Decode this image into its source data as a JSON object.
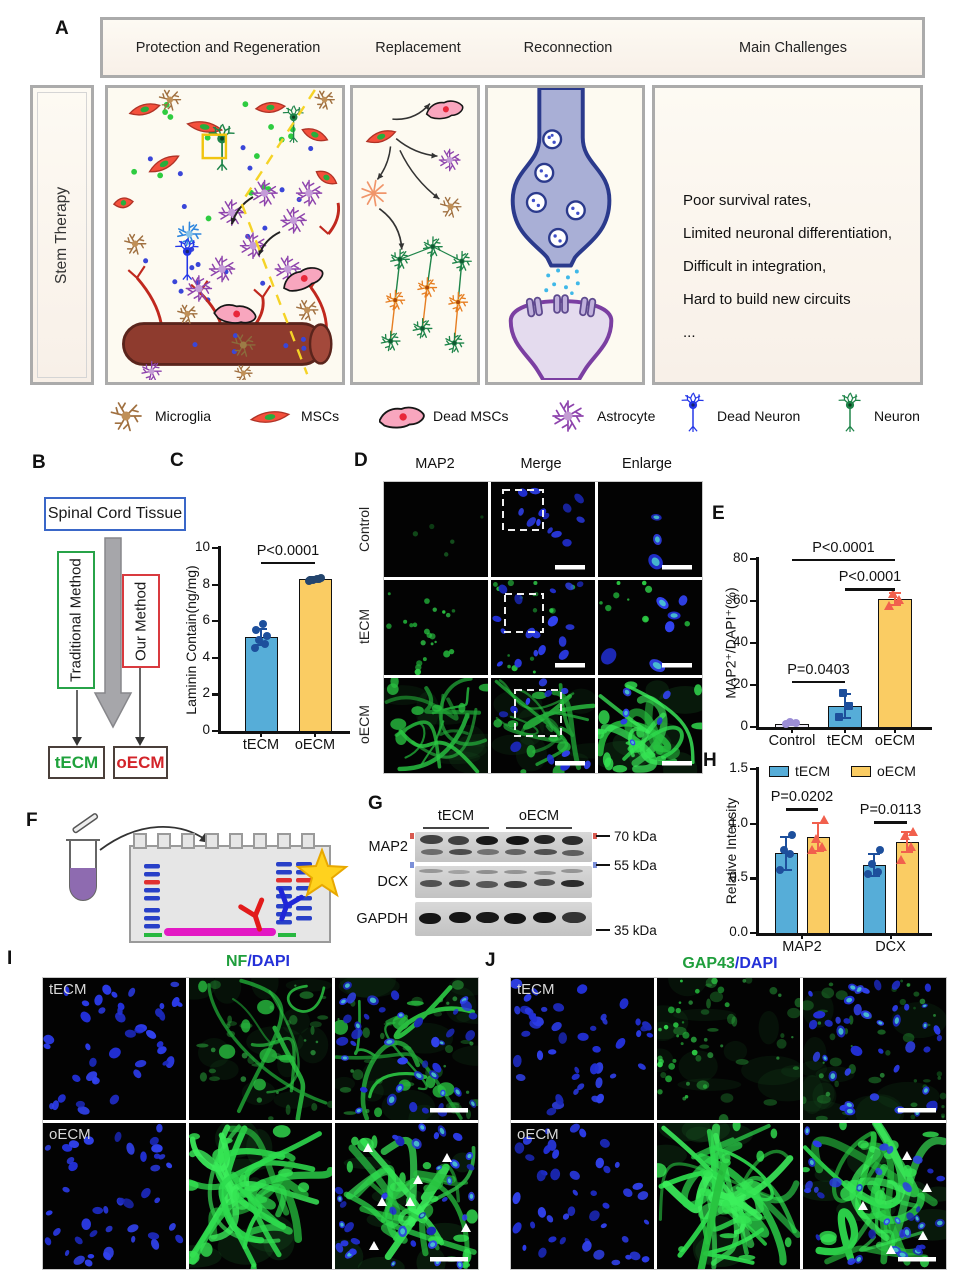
{
  "figure": {
    "panel_labels": {
      "a": "A",
      "b": "B",
      "c": "C",
      "d": "D",
      "e": "E",
      "f": "F",
      "g": "G",
      "h": "H",
      "i": "I",
      "j": "J"
    }
  },
  "panel_a": {
    "column_headers": [
      "Protection and Regeneration",
      "Replacement",
      "Reconnection",
      "Main Challenges"
    ],
    "side_label": "Stem Therapy",
    "challenges": [
      "Poor survival rates,",
      "Limited neuronal differentiation,",
      "Difficult in integration,",
      "Hard to build new circuits",
      "..."
    ],
    "legend": [
      {
        "icon": "microglia-icon",
        "label": "Microglia"
      },
      {
        "icon": "msc-icon",
        "label": "MSCs"
      },
      {
        "icon": "dead-msc-icon",
        "label": "Dead MSCs"
      },
      {
        "icon": "astrocyte-icon",
        "label": "Astrocyte"
      },
      {
        "icon": "dead-neuron-icon",
        "label": "Dead Neuron"
      },
      {
        "icon": "neuron-icon",
        "label": "Neuron"
      }
    ]
  },
  "panel_b": {
    "source_box": "Spinal Cord Tissue",
    "left_method": "Traditional Method",
    "right_method": "Our Method",
    "left_output": "tECM",
    "right_output": "oECM"
  },
  "panel_d": {
    "col_headers": [
      "MAP2",
      "Merge",
      "Enlarge"
    ],
    "row_labels": [
      "Control",
      "tECM",
      "oECM"
    ]
  },
  "panel_g": {
    "group_headers": [
      "tECM",
      "oECM"
    ],
    "protein_labels": [
      "MAP2",
      "DCX",
      "GAPDH"
    ],
    "weight_markers": [
      "70 kDa",
      "55 kDa",
      "35 kDa"
    ]
  },
  "panel_i": {
    "title_green": "NF",
    "title_sep": "/",
    "title_blue": "DAPI",
    "row_labels": [
      "tECM",
      "oECM"
    ]
  },
  "panel_j": {
    "title_green": "GAP43",
    "title_sep": "/",
    "title_blue": "DAPI",
    "row_labels": [
      "tECM",
      "oECM"
    ]
  },
  "chart_data": [
    {
      "id": "C",
      "type": "bar",
      "title": "",
      "categories": [
        "tECM",
        "oECM"
      ],
      "values": [
        5.15,
        8.3
      ],
      "errors": [
        0.45,
        0.12
      ],
      "bar_colors": [
        "#56ADD8",
        "#FACC63"
      ],
      "points": [
        {
          "shape": "circle",
          "color": "#1D4F9C",
          "values": [
            4.55,
            4.75,
            5.0,
            5.2,
            5.5,
            5.85
          ]
        },
        {
          "shape": "circle",
          "color": "#23456E",
          "values": [
            8.22,
            8.3,
            8.27,
            8.35,
            8.25,
            8.31
          ]
        }
      ],
      "ylabel": "Laminin Contain(ng/mg)",
      "ylim": [
        0,
        10
      ],
      "yticks": [
        0,
        2,
        4,
        6,
        8,
        10
      ],
      "annotations": [
        {
          "text": "P<0.0001",
          "x1": 0,
          "x2": 1,
          "y": 9.25
        }
      ]
    },
    {
      "id": "E",
      "type": "bar",
      "categories": [
        "Control",
        "tECM",
        "oECM"
      ],
      "values": [
        1.5,
        10,
        61
      ],
      "errors": [
        0.7,
        5.5,
        3
      ],
      "bar_colors": [
        "#EFEDF8",
        "#56ADD8",
        "#FACC63"
      ],
      "points": [
        {
          "shape": "circle",
          "color": "#9C8ED6",
          "values": [
            1.3,
            1.8,
            2.3
          ]
        },
        {
          "shape": "square",
          "color": "#1D4F9C",
          "values": [
            5,
            10,
            16
          ]
        },
        {
          "shape": "triangle",
          "color": "#F1604D",
          "values": [
            58,
            61,
            64
          ]
        }
      ],
      "ylabel": "MAP2⁺/DAPI⁺(%)",
      "ylim": [
        0,
        80
      ],
      "yticks": [
        0,
        20,
        40,
        60,
        80
      ],
      "annotations": [
        {
          "text": "P<0.0001",
          "x1": 0,
          "x2": 2,
          "y": 80
        },
        {
          "text": "P<0.0001",
          "x1": 1,
          "x2": 2,
          "y": 66
        },
        {
          "text": "P=0.0403",
          "x1": 0,
          "x2": 1,
          "y": 22
        }
      ]
    },
    {
      "id": "H",
      "type": "grouped_bar",
      "categories": [
        "MAP2",
        "DCX"
      ],
      "series": [
        {
          "name": "tECM",
          "color": "#56ADD8",
          "values": [
            0.73,
            0.62
          ],
          "errors": [
            0.15,
            0.1
          ],
          "point_shape": "circle",
          "point_color": "#1D4F9C",
          "points": [
            [
              0.58,
              0.72,
              0.76,
              0.9
            ],
            [
              0.54,
              0.56,
              0.63,
              0.76
            ]
          ]
        },
        {
          "name": "oECM",
          "color": "#FACC63",
          "values": [
            0.88,
            0.83
          ],
          "errors": [
            0.13,
            0.09
          ],
          "point_shape": "triangle",
          "point_color": "#F1604D",
          "points": [
            [
              0.77,
              0.8,
              0.87,
              1.04
            ],
            [
              0.68,
              0.8,
              0.9,
              0.93
            ]
          ]
        }
      ],
      "ylabel": "Relative Intensity",
      "ylim": [
        0,
        1.5
      ],
      "yticks": [
        "0.0",
        "0.5",
        "1.0",
        "1.5"
      ],
      "annotations": [
        {
          "text": "P=0.0202",
          "cat": 0,
          "y": 1.14
        },
        {
          "text": "P=0.0113",
          "cat": 1,
          "y": 1.02
        }
      ],
      "legend_position": "top"
    }
  ]
}
